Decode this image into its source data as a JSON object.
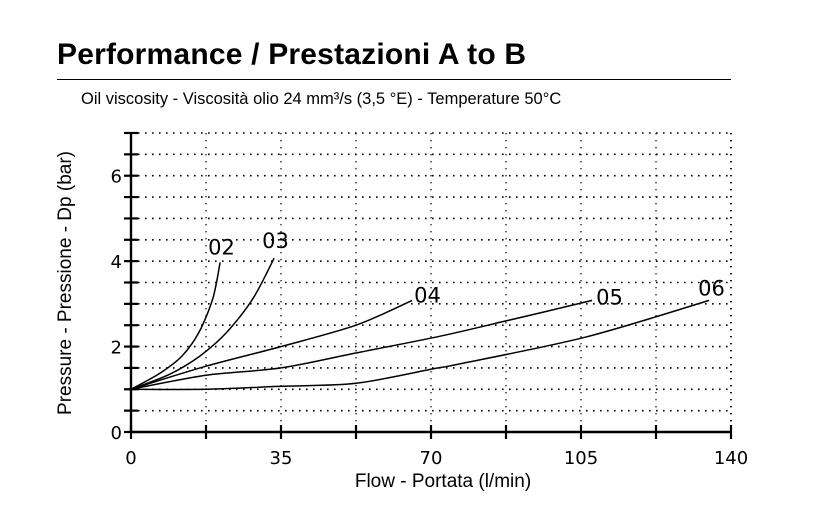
{
  "header": {
    "title": "Performance / Prestazioni A to B",
    "subtitle": "Oil viscosity - Viscosità olio 24 mm³/s (3,5 °E) - Temperature 50°C"
  },
  "chart_data": {
    "type": "line",
    "title": "Performance / Prestazioni A to B",
    "subtitle": "Oil viscosity - Viscosità olio 24 mm³/s (3,5 °E) - Temperature 50°C",
    "xlabel": "Flow - Portata (l/min)",
    "ylabel": "Pressure - Pressione - Dp (bar)",
    "xlim": [
      0,
      140
    ],
    "ylim": [
      0,
      7
    ],
    "xticks": [
      0,
      35,
      70,
      105,
      140
    ],
    "xticks_minor": [
      17.5,
      52.5,
      87.5,
      122.5
    ],
    "yticks": [
      0,
      2,
      4,
      6
    ],
    "yticks_minor": [
      0.5,
      1,
      1.5,
      2.5,
      3,
      3.5,
      4.5,
      5,
      5.5,
      6.5,
      7
    ],
    "grid": true,
    "grid_style": "dotted",
    "line_color": "#000000",
    "series": [
      {
        "name": "02",
        "points": [
          [
            0,
            1.0
          ],
          [
            6.8,
            1.38
          ],
          [
            11.9,
            1.78
          ],
          [
            15.9,
            2.34
          ],
          [
            19.1,
            3.13
          ],
          [
            20.8,
            3.97
          ]
        ]
      },
      {
        "name": "03",
        "points": [
          [
            0,
            1.0
          ],
          [
            9,
            1.35
          ],
          [
            16.1,
            1.78
          ],
          [
            22.4,
            2.34
          ],
          [
            28.5,
            3.13
          ],
          [
            33.4,
            4.07
          ]
        ]
      },
      {
        "name": "04",
        "points": [
          [
            0,
            1.0
          ],
          [
            17.5,
            1.54
          ],
          [
            35,
            2.0
          ],
          [
            52.5,
            2.5
          ],
          [
            65.6,
            3.08
          ]
        ]
      },
      {
        "name": "05",
        "points": [
          [
            0,
            1.0
          ],
          [
            17.5,
            1.33
          ],
          [
            35,
            1.5
          ],
          [
            52.5,
            1.85
          ],
          [
            72,
            2.24
          ],
          [
            87.5,
            2.6
          ],
          [
            107.6,
            3.08
          ]
        ]
      },
      {
        "name": "06",
        "points": [
          [
            0,
            1.0
          ],
          [
            17.5,
            1.0
          ],
          [
            35,
            1.07
          ],
          [
            52.5,
            1.14
          ],
          [
            71,
            1.49
          ],
          [
            76,
            1.58
          ],
          [
            106,
            2.22
          ],
          [
            134.9,
            3.08
          ]
        ]
      }
    ]
  }
}
